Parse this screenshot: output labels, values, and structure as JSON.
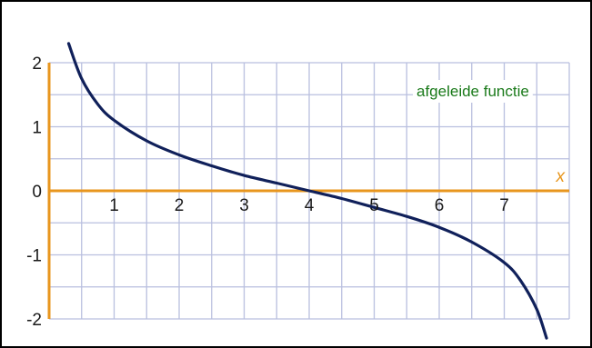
{
  "chart_data": {
    "type": "line",
    "annotation": "afgeleide functie",
    "xlabel": "x",
    "ylabel": "",
    "xlim": [
      -0.5,
      8
    ],
    "ylim": [
      -2,
      2
    ],
    "x_ticks": [
      1,
      2,
      3,
      4,
      5,
      6,
      7
    ],
    "x_tick_labels": [
      "1",
      "2",
      "3",
      "4",
      "5",
      "6",
      "7"
    ],
    "y_ticks": [
      2,
      1,
      0,
      -1,
      -2
    ],
    "y_tick_labels": [
      "2",
      "1",
      "0",
      "-1",
      "-2"
    ],
    "grid": true,
    "grid_step": 0.5,
    "series": [
      {
        "x": [
          0.3,
          0.5,
          0.75,
          1.0,
          1.5,
          2.0,
          2.5,
          3.0,
          3.5,
          4.0,
          4.5,
          5.0,
          5.5,
          6.0,
          6.5,
          7.0,
          7.25,
          7.5,
          7.65
        ],
        "y": [
          2.3,
          1.75,
          1.35,
          1.1,
          0.78,
          0.56,
          0.39,
          0.24,
          0.12,
          0.0,
          -0.12,
          -0.26,
          -0.4,
          -0.57,
          -0.8,
          -1.12,
          -1.4,
          -1.85,
          -2.3
        ]
      }
    ],
    "colors": {
      "grid": "#b9bfdf",
      "axes": "#e8961e",
      "curve": "#10205a",
      "annotation": "#1a7a1a"
    }
  }
}
